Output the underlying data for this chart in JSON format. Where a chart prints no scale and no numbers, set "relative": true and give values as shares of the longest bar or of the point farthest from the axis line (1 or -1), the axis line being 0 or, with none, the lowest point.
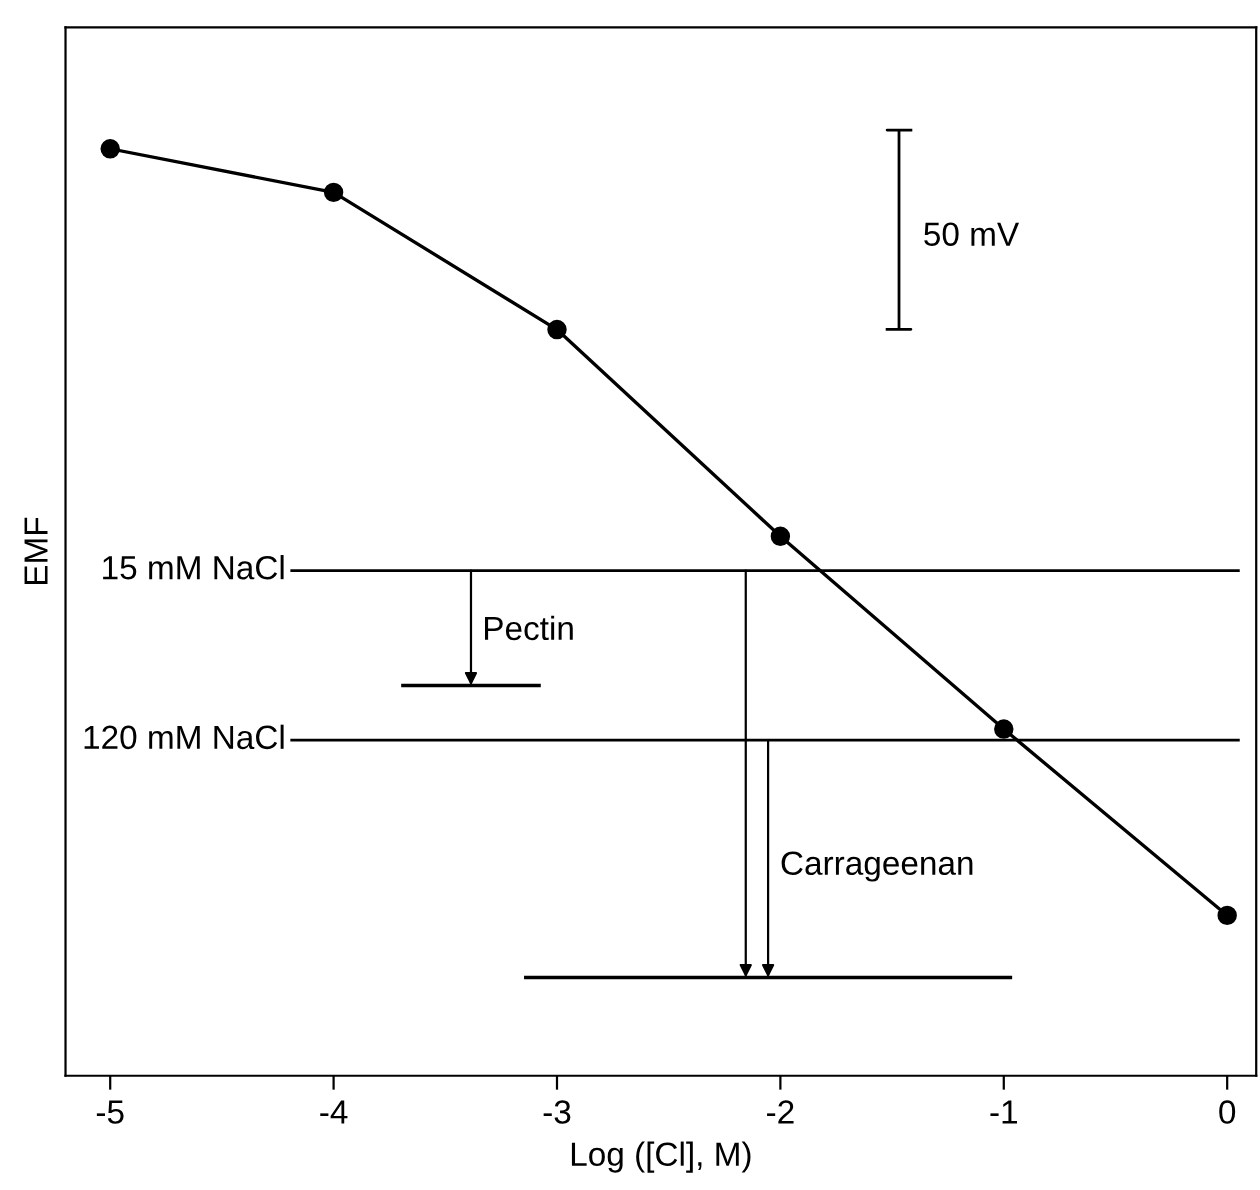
{
  "chart_data": {
    "type": "line",
    "xlabel": "Log ([Cl], M)",
    "ylabel": "EMF",
    "relative": true,
    "xlim": [
      -5.2,
      0.13
    ],
    "xticks": [
      -5,
      -4,
      -3,
      -2,
      -1,
      0
    ],
    "series": [
      {
        "x": [
          -5,
          -4,
          -3,
          -2,
          -1,
          0
        ],
        "values": [
          1,
          0.953,
          0.805,
          0.582,
          0.374,
          0.173
        ],
        "color": "#000000",
        "marker": "circle"
      },
      {
        "x": [
          -3.69,
          -3.08
        ],
        "values": [
          0.421,
          0.421
        ],
        "color": "#000000",
        "marker": "none"
      },
      {
        "x": [
          -3.14,
          -0.97
        ],
        "values": [
          0.106,
          0.106
        ],
        "color": "#000000",
        "marker": "none"
      }
    ],
    "ref_lines": [
      {
        "axis": "y",
        "value": 0.545,
        "label": "15 mM NaCl"
      },
      {
        "axis": "y",
        "value": 0.362,
        "label": "120 mM NaCl"
      }
    ],
    "annotations": [
      "50 mV",
      "Pectin",
      "Carrageenan"
    ],
    "grid": false,
    "legend": false
  }
}
